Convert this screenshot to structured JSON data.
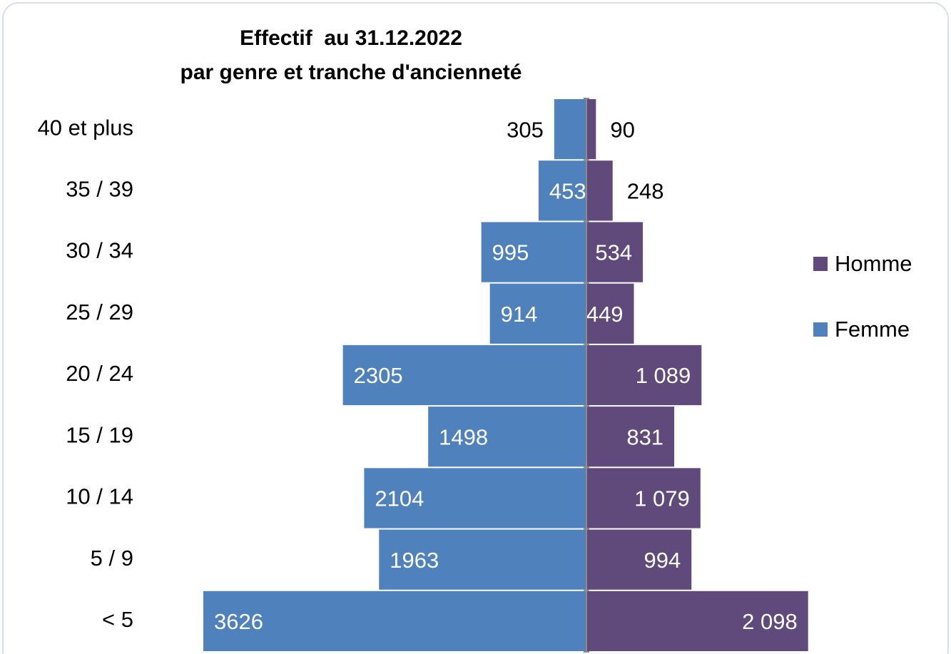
{
  "chart_data": {
    "type": "pyramid",
    "title": [
      "Effectif  au 31.12.2022",
      "par genre et tranche d'ancienneté"
    ],
    "categories": [
      "40 et plus",
      "35 / 39",
      "30 / 34",
      "25 / 29",
      "20 / 24",
      "15 / 19",
      "10 / 14",
      "5 / 9",
      "< 5"
    ],
    "series": [
      {
        "name": "Homme",
        "color": "#604a7b",
        "values": [
          90,
          248,
          534,
          449,
          1089,
          831,
          1079,
          994,
          2098
        ],
        "value_labels": [
          "90",
          "248",
          "534",
          "449",
          "1 089",
          "831",
          "1 079",
          "994",
          "2 098"
        ]
      },
      {
        "name": "Femme",
        "color": "#4f81bd",
        "values": [
          305,
          453,
          995,
          914,
          2305,
          1498,
          2104,
          1963,
          3626
        ]
      }
    ]
  }
}
